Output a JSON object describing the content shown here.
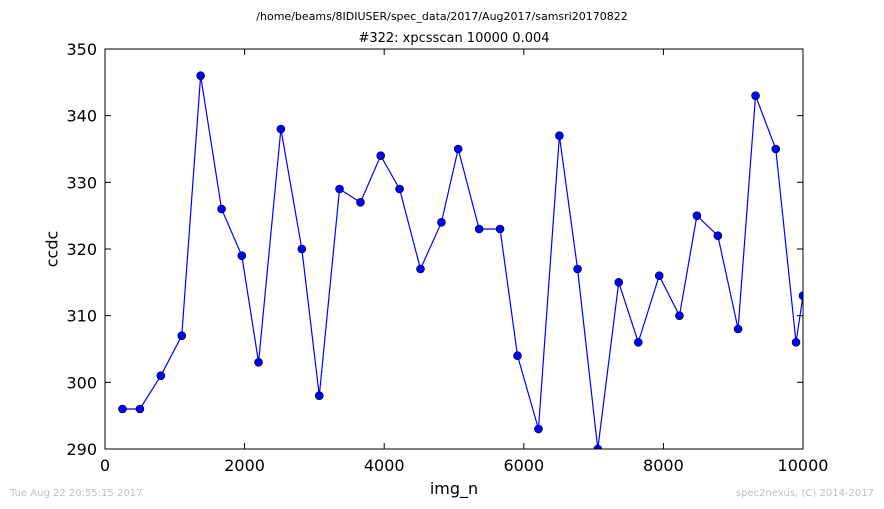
{
  "header": {
    "suptitle": "/home/beams/8IDIUSER/spec_data/2017/Aug2017/samsri20170822"
  },
  "footer": {
    "left": "Tue Aug 22 20:55:15 2017",
    "right": "spec2nexus, (C) 2014-2017"
  },
  "colors": {
    "series": "#0000ff",
    "axes": "#000000",
    "footer_text": "#c0c0c0"
  },
  "chart_data": {
    "type": "line",
    "title": "#322: xpcsscan 10000 0.004",
    "xlabel": "img_n",
    "ylabel": "ccdc",
    "xlim": [
      0,
      10000
    ],
    "ylim": [
      290,
      350
    ],
    "xticks": [
      0,
      2000,
      4000,
      6000,
      8000,
      10000
    ],
    "yticks": [
      290,
      300,
      310,
      320,
      330,
      340,
      350
    ],
    "grid": false,
    "marker": "circle",
    "series": [
      {
        "x": [
          250,
          500,
          800,
          1100,
          1370,
          1670,
          1960,
          2200,
          2520,
          2820,
          3070,
          3360,
          3660,
          3950,
          4220,
          4520,
          4820,
          5060,
          5360,
          5660,
          5910,
          6210,
          6510,
          6770,
          7060,
          7360,
          7640,
          7940,
          8230,
          8480,
          8780,
          9070,
          9320,
          9610,
          9900,
          10000
        ],
        "y": [
          296,
          296,
          301,
          307,
          346,
          326,
          319,
          303,
          338,
          320,
          298,
          329,
          327,
          334,
          329,
          317,
          324,
          335,
          323,
          323,
          304,
          293,
          337,
          317,
          290,
          315,
          306,
          316,
          310,
          325,
          322,
          308,
          343,
          335,
          306,
          313
        ]
      }
    ]
  }
}
